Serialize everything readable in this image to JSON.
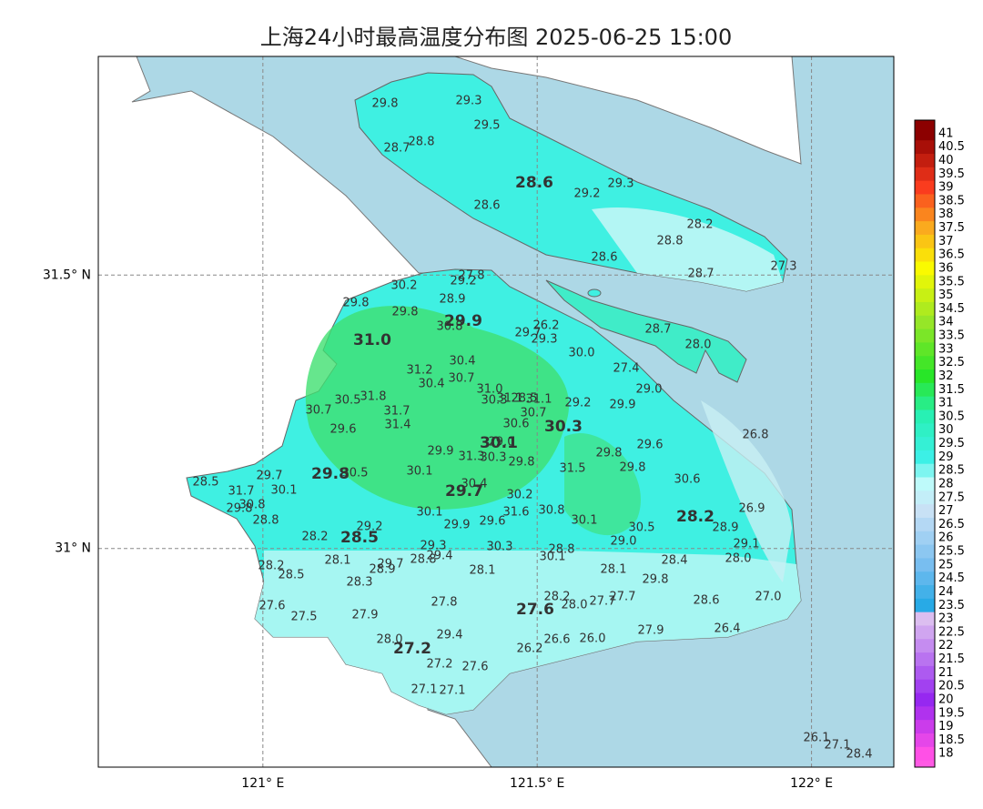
{
  "title": "上海24小时最高温度分布图 2025-06-25 15:00",
  "map": {
    "xlim": [
      120.7,
      122.15
    ],
    "ylim": [
      30.6,
      31.9
    ],
    "xticks": [
      {
        "value": 121,
        "label": "121° E"
      },
      {
        "value": 121.5,
        "label": "121.5° E"
      },
      {
        "value": 122,
        "label": "122° E"
      }
    ],
    "yticks": [
      {
        "value": 31.5,
        "label": "31.5° N"
      },
      {
        "value": 31,
        "label": "31° N"
      }
    ],
    "grid": true
  },
  "stations": [
    "29.8",
    "29.3",
    "29.5",
    "28.7",
    "28.8",
    "28.6",
    "29.2",
    "29.3",
    "28.6",
    "28.2",
    "28.8",
    "28.6",
    "28.7",
    "27.3",
    "28.7",
    "28.0",
    "27.8",
    "29.2",
    "30.2",
    "29.8",
    "28.9",
    "29.8",
    "29.9",
    "30.8",
    "29.7",
    "26.2",
    "29.3",
    "31.0",
    "30.0",
    "30.4",
    "31.2",
    "30.7",
    "30.4",
    "27.4",
    "31.0",
    "29.0",
    "30.5",
    "31.8",
    "30.3",
    "31.1",
    "28.5",
    "31.1",
    "29.2",
    "29.9",
    "30.7",
    "31.7",
    "30.7",
    "30.6",
    "30.3",
    "26.8",
    "29.6",
    "31.4",
    "29.0",
    "30.1",
    "29.9",
    "29.8",
    "29.6",
    "31.3",
    "30.3",
    "29.8",
    "31.5",
    "29.8",
    "29.8",
    "30.5",
    "30.1",
    "30.6",
    "28.5",
    "29.7",
    "30.1",
    "31.7",
    "30.4",
    "29.7",
    "30.2",
    "30.8",
    "29.8",
    "26.9",
    "30.1",
    "30.8",
    "31.6",
    "29.6",
    "30.1",
    "28.2",
    "28.8",
    "29.2",
    "29.9",
    "30.5",
    "28.9",
    "28.2",
    "28.5",
    "29.0",
    "29.1",
    "29.3",
    "30.3",
    "28.8",
    "29.4",
    "28.8",
    "30.1",
    "28.1",
    "29.7",
    "28.9",
    "28.4",
    "28.0",
    "28.2",
    "28.5",
    "28.1",
    "28.1",
    "29.8",
    "28.3",
    "28.2",
    "28.0",
    "27.7",
    "27.7",
    "28.6",
    "27.0",
    "27.6",
    "27.8",
    "27.6",
    "27.9",
    "27.5",
    "29.4",
    "27.9",
    "26.4",
    "28.0",
    "26.6",
    "26.0",
    "27.2",
    "26.2",
    "27.2",
    "27.6",
    "27.1",
    "27.1",
    "26.1",
    "27.1",
    "28.4"
  ],
  "colorbar": {
    "ticks": [
      41,
      40.5,
      40,
      39.5,
      39,
      38.5,
      38,
      37.5,
      37,
      36.5,
      36,
      35.5,
      35,
      34.5,
      34,
      33.5,
      33,
      32.5,
      32,
      31.5,
      31,
      30.5,
      30,
      29.5,
      29,
      28.5,
      28,
      27.5,
      27,
      26.5,
      26,
      25.5,
      25,
      24.5,
      24,
      23.5,
      23,
      22.5,
      22,
      21.5,
      21,
      20.5,
      20,
      19.5,
      19,
      18.5,
      18
    ]
  }
}
